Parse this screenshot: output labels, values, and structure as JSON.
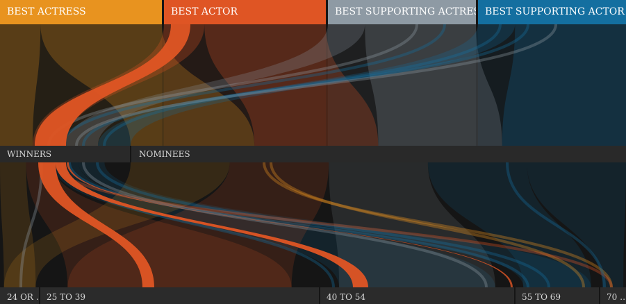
{
  "chart_data": {
    "type": "sankey",
    "categories": [
      {
        "name": "BEST ACTRESS",
        "color": "#e8931f"
      },
      {
        "name": "BEST ACTOR",
        "color": "#df5524"
      },
      {
        "name": "BEST SUPPORTING ACTRESS",
        "color": "#8e9aa4"
      },
      {
        "name": "BEST SUPPORTING ACTOR",
        "color": "#146fa0"
      }
    ],
    "status": [
      "WINNERS",
      "NOMINEES"
    ],
    "age_groups": [
      "24 OR …",
      "25 TO 39",
      "40 TO 54",
      "55 TO 69",
      "70 …"
    ],
    "highlight": {
      "category": "BEST ACTOR",
      "status": "WINNERS"
    }
  }
}
